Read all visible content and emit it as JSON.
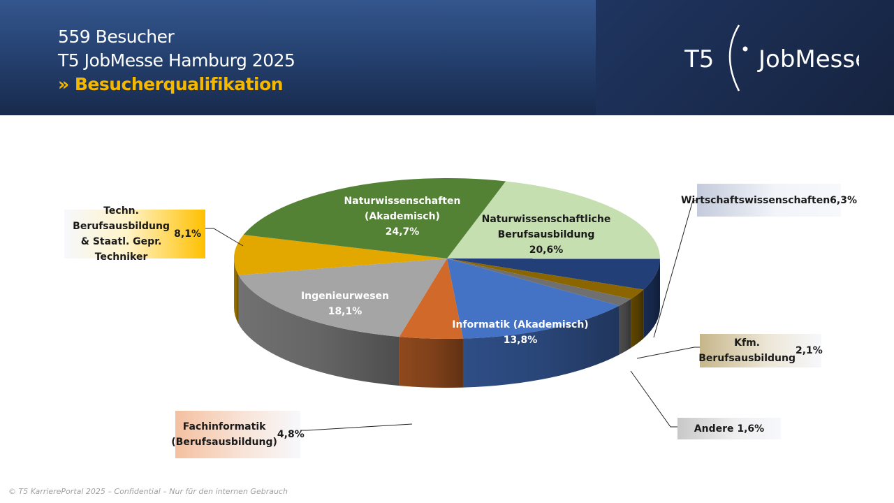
{
  "header": {
    "line1": "559 Besucher",
    "line2": "T5 JobMesse Hamburg 2025",
    "line3": "» Besucherqualifikation"
  },
  "logo": {
    "text_left": "T5",
    "text_right": "JobMesse"
  },
  "footer": "© T5 KarrierePortal 2025 – Confidential – Nur für den internen Gebrauch",
  "chart_data": {
    "type": "pie",
    "style": "3d",
    "unit": "%",
    "slices": [
      {
        "label": "Naturwissenschaftliche\nBerufsausbildung",
        "value": 20.6,
        "display": "20,6%",
        "color": "#c5dfb0"
      },
      {
        "label": "Wirtschaftswissenschaften",
        "value": 6.3,
        "display": "6,3%",
        "color": "#233f78"
      },
      {
        "label": "Kfm. Berufsausbildung",
        "value": 2.1,
        "display": "2,1%",
        "color": "#8a6500"
      },
      {
        "label": "Andere",
        "value": 1.6,
        "display": "1,6%",
        "color": "#707070"
      },
      {
        "label": "Informatik (Akademisch)",
        "value": 13.8,
        "display": "13,8%",
        "color": "#4472c4"
      },
      {
        "label": "Fachinformatik\n(Berufsausbildung)",
        "value": 4.8,
        "display": "4,8%",
        "color": "#d0692a"
      },
      {
        "label": "Ingenieurwesen",
        "value": 18.1,
        "display": "18,1%",
        "color": "#a5a5a5"
      },
      {
        "label": "Techn. Berufsausbildung\n& Staatl. Gepr. Techniker",
        "value": 8.1,
        "display": "8,1%",
        "color": "#e2a800"
      },
      {
        "label": "Naturwissenschaften\n(Akademisch)",
        "value": 24.7,
        "display": "24,7%",
        "color": "#548235"
      }
    ]
  }
}
